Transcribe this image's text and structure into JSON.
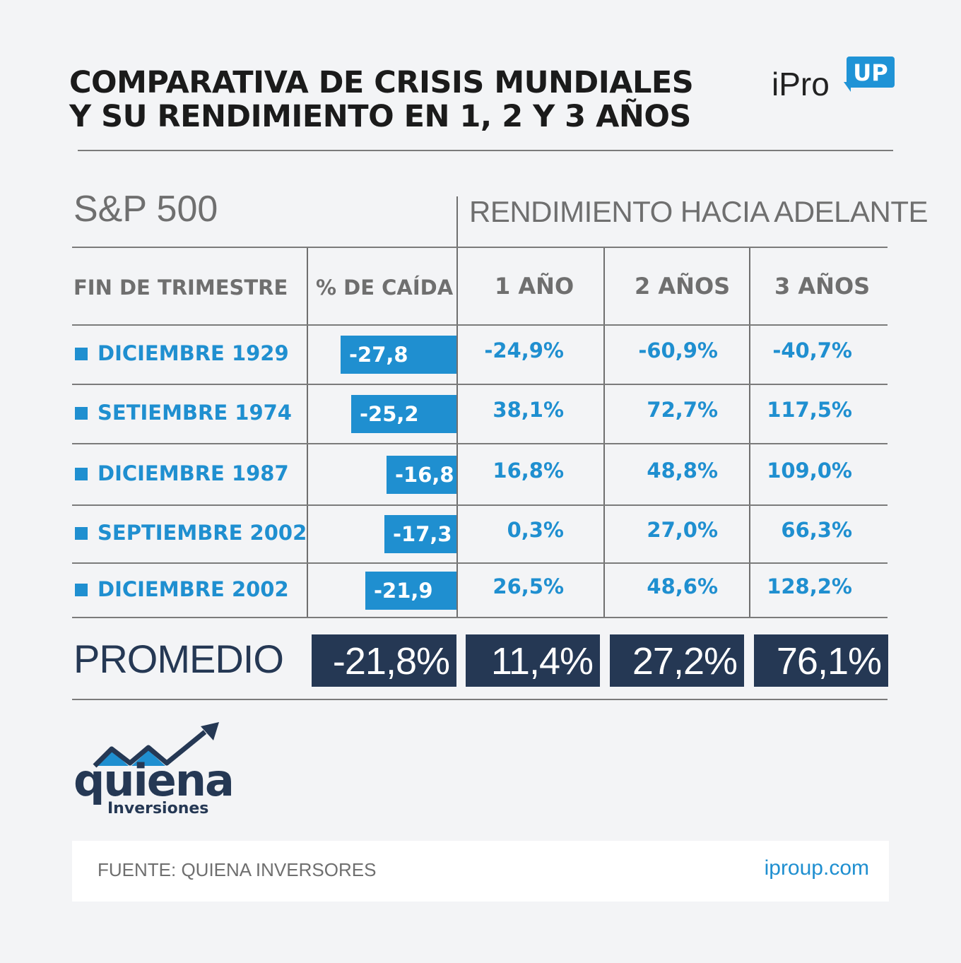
{
  "header": {
    "title_line1": "COMPARATIVA DE CRISIS MUNDIALES",
    "title_line2": "Y SU RENDIMIENTO EN 1, 2 Y 3 AÑOS",
    "brand_text": "iPro",
    "brand_badge": "UP"
  },
  "table": {
    "index_label": "S&P 500",
    "forward_label": "RENDIMIENTO HACIA ADELANTE",
    "columns": [
      "FIN DE TRIMESTRE",
      "% DE CAÍDA",
      "1 AÑO",
      "2 AÑOS",
      "3 AÑOS"
    ],
    "average_label": "PROMEDIO",
    "average_values": [
      "-21,8%",
      "11,4%",
      "27,2%",
      "76,1%"
    ],
    "accent_color": "#1f8fd0",
    "dark_color": "#253854"
  },
  "chart_data": {
    "type": "table",
    "rows": [
      {
        "label": "DICIEMBRE 1929",
        "drop": -27.8,
        "drop_text": "-27,8",
        "y1": "-24,9%",
        "y2": "-60,9%",
        "y3": "-40,7%"
      },
      {
        "label": "SETIEMBRE 1974",
        "drop": -25.2,
        "drop_text": "-25,2",
        "y1": "38,1%",
        "y2": "72,7%",
        "y3": "117,5%"
      },
      {
        "label": "DICIEMBRE 1987",
        "drop": -16.8,
        "drop_text": "-16,8",
        "y1": "16,8%",
        "y2": "48,8%",
        "y3": "109,0%"
      },
      {
        "label": "SEPTIEMBRE 2002",
        "drop": -17.3,
        "drop_text": "-17,3",
        "y1": "0,3%",
        "y2": "27,0%",
        "y3": "66,3%"
      },
      {
        "label": "DICIEMBRE 2002",
        "drop": -21.9,
        "drop_text": "-21,9",
        "y1": "26,5%",
        "y2": "48,6%",
        "y3": "128,2%"
      }
    ]
  },
  "logo": {
    "name": "quiena",
    "subtitle": "Inversiones"
  },
  "footer": {
    "source": "FUENTE: QUIENA INVERSORES",
    "site": "iproup.com"
  }
}
